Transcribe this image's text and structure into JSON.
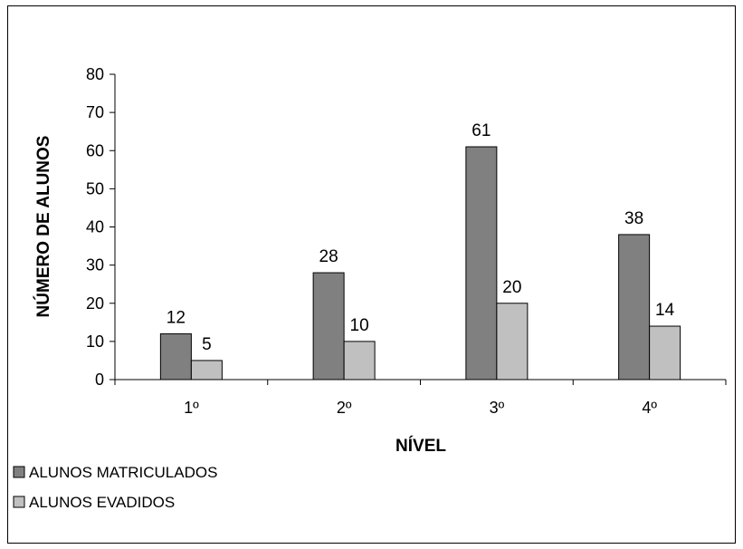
{
  "chart_data": {
    "type": "bar",
    "title": "",
    "xlabel": "NÍVEL",
    "ylabel": "NÚMERO DE ALUNOS",
    "categories": [
      "1º",
      "2º",
      "3º",
      "4º"
    ],
    "series": [
      {
        "name": "ALUNOS MATRICULADOS",
        "values": [
          12,
          28,
          61,
          38
        ],
        "color": "#808080"
      },
      {
        "name": "ALUNOS EVADIDOS",
        "values": [
          5,
          10,
          20,
          14
        ],
        "color": "#c0c0c0"
      }
    ],
    "ylim": [
      0,
      80
    ],
    "yticks": [
      "0",
      "10",
      "20",
      "30",
      "40",
      "50",
      "60",
      "70",
      "80"
    ],
    "grid": false,
    "legend_position": "bottom-left"
  }
}
